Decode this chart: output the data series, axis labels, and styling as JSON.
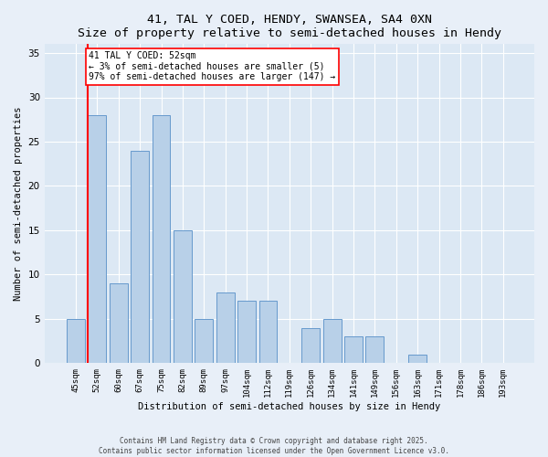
{
  "title1": "41, TAL Y COED, HENDY, SWANSEA, SA4 0XN",
  "title2": "Size of property relative to semi-detached houses in Hendy",
  "xlabel": "Distribution of semi-detached houses by size in Hendy",
  "ylabel": "Number of semi-detached properties",
  "categories": [
    "45sqm",
    "52sqm",
    "60sqm",
    "67sqm",
    "75sqm",
    "82sqm",
    "89sqm",
    "97sqm",
    "104sqm",
    "112sqm",
    "119sqm",
    "126sqm",
    "134sqm",
    "141sqm",
    "149sqm",
    "156sqm",
    "163sqm",
    "171sqm",
    "178sqm",
    "186sqm",
    "193sqm"
  ],
  "values": [
    5,
    28,
    9,
    24,
    28,
    15,
    5,
    8,
    7,
    7,
    0,
    4,
    5,
    3,
    3,
    0,
    1,
    0,
    0,
    0,
    0
  ],
  "bar_color": "#b8d0e8",
  "bar_edge_color": "#6699cc",
  "highlight_bar_index": 1,
  "annotation_title": "41 TAL Y COED: 52sqm",
  "annotation_line1": "← 3% of semi-detached houses are smaller (5)",
  "annotation_line2": "97% of semi-detached houses are larger (147) →",
  "ylim": [
    0,
    36
  ],
  "yticks": [
    0,
    5,
    10,
    15,
    20,
    25,
    30,
    35
  ],
  "footer1": "Contains HM Land Registry data © Crown copyright and database right 2025.",
  "footer2": "Contains public sector information licensed under the Open Government Licence v3.0.",
  "background_color": "#e8eff8",
  "plot_background": "#dce8f4"
}
